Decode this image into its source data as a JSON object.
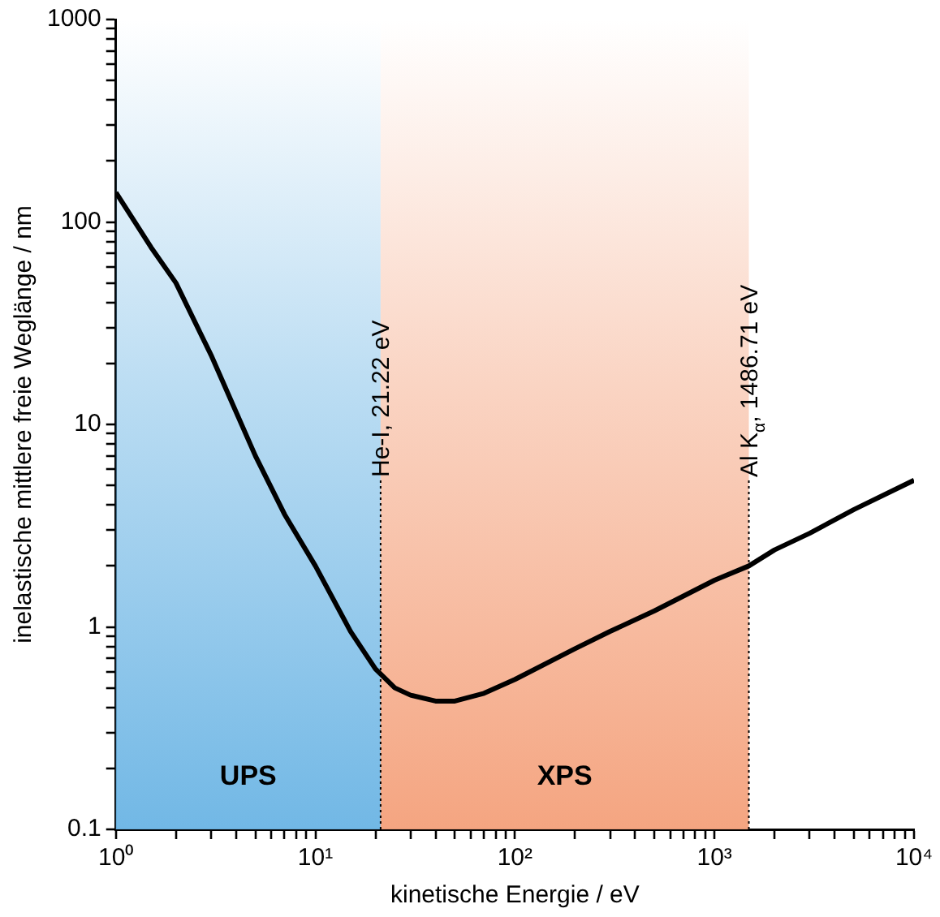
{
  "chart_data": {
    "type": "line",
    "xlabel": "kinetische Energie / eV",
    "ylabel": "inelastische mittlere freie Weglänge / nm",
    "log": "xy",
    "grid": false,
    "legend": false,
    "marker": "none",
    "line_style": "solid",
    "series": [
      {
        "color": "#000000",
        "x": [
          1,
          1.5,
          2,
          3,
          5,
          7,
          10,
          15,
          20,
          25,
          30,
          40,
          50,
          70,
          100,
          200,
          300,
          500,
          1000,
          1486.71,
          2000,
          3000,
          5000,
          10000
        ],
        "values": [
          140,
          75,
          50,
          22,
          7,
          3.6,
          2,
          0.95,
          0.62,
          0.5,
          0.46,
          0.43,
          0.43,
          0.47,
          0.55,
          0.78,
          0.95,
          1.2,
          1.7,
          2.0,
          2.4,
          2.9,
          3.8,
          5.3
        ]
      }
    ],
    "xlim": [
      1,
      10000
    ],
    "ylim": [
      0.1,
      1000
    ],
    "xticks": [
      {
        "value": 1,
        "label": "10⁰"
      },
      {
        "value": 2,
        "label": null
      },
      {
        "value": 3,
        "label": null
      },
      {
        "value": 4,
        "label": null
      },
      {
        "value": 5,
        "label": null
      },
      {
        "value": 6,
        "label": null
      },
      {
        "value": 7,
        "label": null
      },
      {
        "value": 8,
        "label": null
      },
      {
        "value": 9,
        "label": null
      },
      {
        "value": 10,
        "label": "10¹"
      },
      {
        "value": 20,
        "label": null
      },
      {
        "value": 30,
        "label": null
      },
      {
        "value": 40,
        "label": null
      },
      {
        "value": 50,
        "label": null
      },
      {
        "value": 60,
        "label": null
      },
      {
        "value": 70,
        "label": null
      },
      {
        "value": 80,
        "label": null
      },
      {
        "value": 90,
        "label": null
      },
      {
        "value": 100,
        "label": "10²"
      },
      {
        "value": 200,
        "label": null
      },
      {
        "value": 300,
        "label": null
      },
      {
        "value": 400,
        "label": null
      },
      {
        "value": 500,
        "label": null
      },
      {
        "value": 600,
        "label": null
      },
      {
        "value": 700,
        "label": null
      },
      {
        "value": 800,
        "label": null
      },
      {
        "value": 900,
        "label": null
      },
      {
        "value": 1000,
        "label": "10³"
      },
      {
        "value": 2000,
        "label": null
      },
      {
        "value": 3000,
        "label": null
      },
      {
        "value": 4000,
        "label": null
      },
      {
        "value": 5000,
        "label": null
      },
      {
        "value": 6000,
        "label": null
      },
      {
        "value": 7000,
        "label": null
      },
      {
        "value": 8000,
        "label": null
      },
      {
        "value": 9000,
        "label": null
      },
      {
        "value": 10000,
        "label": "10⁴"
      }
    ],
    "yticks": [
      0.1,
      {
        "value": 0.2,
        "label": null
      },
      {
        "value": 0.3,
        "label": null
      },
      {
        "value": 0.4,
        "label": null
      },
      {
        "value": 0.5,
        "label": null
      },
      {
        "value": 0.6,
        "label": null
      },
      {
        "value": 0.7,
        "label": null
      },
      {
        "value": 0.8,
        "label": null
      },
      {
        "value": 0.9,
        "label": null
      },
      1,
      {
        "value": 2,
        "label": null
      },
      {
        "value": 3,
        "label": null
      },
      {
        "value": 4,
        "label": null
      },
      {
        "value": 5,
        "label": null
      },
      {
        "value": 6,
        "label": null
      },
      {
        "value": 7,
        "label": null
      },
      {
        "value": 8,
        "label": null
      },
      {
        "value": 9,
        "label": null
      },
      10,
      {
        "value": 20,
        "label": null
      },
      {
        "value": 30,
        "label": null
      },
      {
        "value": 40,
        "label": null
      },
      {
        "value": 50,
        "label": null
      },
      {
        "value": 60,
        "label": null
      },
      {
        "value": 70,
        "label": null
      },
      {
        "value": 80,
        "label": null
      },
      {
        "value": 90,
        "label": null
      },
      100,
      {
        "value": 200,
        "label": null
      },
      {
        "value": 300,
        "label": null
      },
      {
        "value": 400,
        "label": null
      },
      {
        "value": 500,
        "label": null
      },
      {
        "value": 600,
        "label": null
      },
      {
        "value": 700,
        "label": null
      },
      {
        "value": 800,
        "label": null
      },
      {
        "value": 900,
        "label": null
      },
      1000
    ],
    "bands": [
      {
        "axis": "x",
        "from": 1,
        "to": 21.22,
        "label": "UPS",
        "color": "#6ab4e4"
      },
      {
        "axis": "x",
        "from": 21.22,
        "to": 1486.71,
        "label": "XPS",
        "color": "#f4a07a"
      }
    ],
    "ref_lines": [
      {
        "axis": "x",
        "value": 21.22,
        "label": "He-I, 21.22 eV",
        "line_style": "dotted"
      },
      {
        "axis": "x",
        "value": 1486.71,
        "label": "Al K$_{α}$, 1486.71 eV",
        "line_style": "dotted"
      }
    ]
  }
}
